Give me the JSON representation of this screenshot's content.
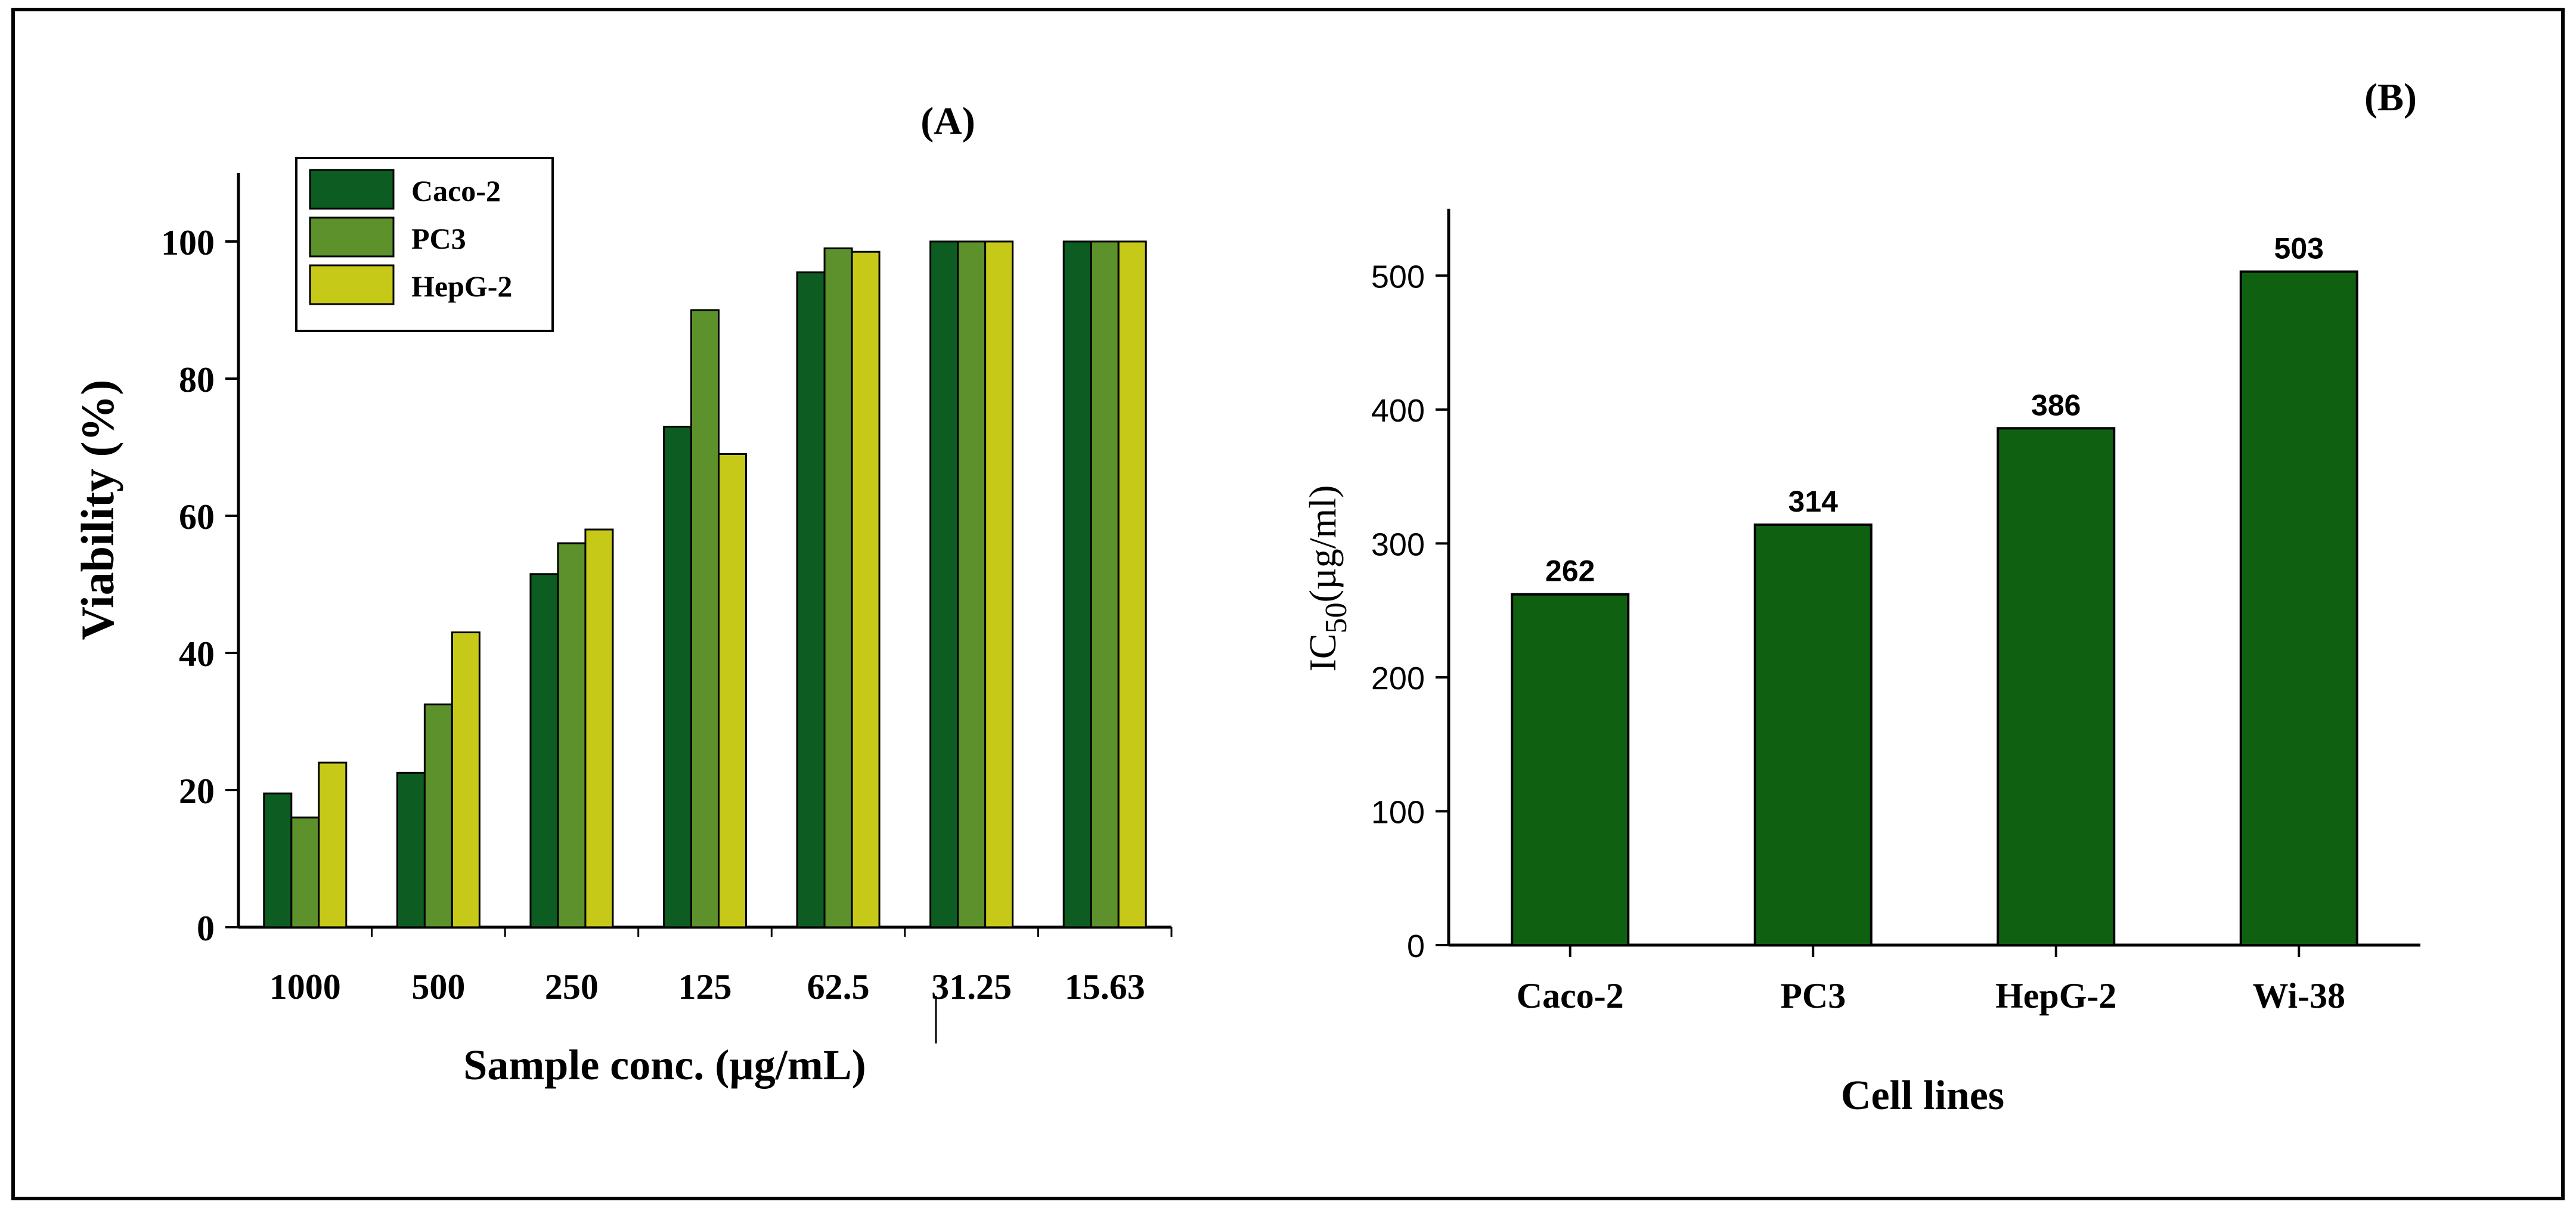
{
  "colors": {
    "caco2": "#0d5d22",
    "pc3": "#5d912b",
    "hepg2": "#c7c919",
    "ic50_bar": "#0f6111",
    "axis": "#000000",
    "frame": "#000000"
  },
  "chart_data": [
    {
      "panel": "(A)",
      "type": "bar",
      "title": "(A)",
      "xlabel": "Sample conc. (µg/mL)",
      "ylabel": "Viability (%)",
      "ylim": [
        0,
        110
      ],
      "yticks": [
        "0",
        "20",
        "40",
        "60",
        "80",
        "100"
      ],
      "categories": [
        "1000",
        "500",
        "250",
        "125",
        "62.5",
        "31.25",
        "15.63"
      ],
      "legend_position": "top-left",
      "series": [
        {
          "name": "Caco-2",
          "color_key": "caco2",
          "values": [
            19.5,
            22.5,
            51.5,
            73,
            95.5,
            100,
            100
          ]
        },
        {
          "name": "PC3",
          "color_key": "pc3",
          "values": [
            16,
            32.5,
            56,
            90,
            99,
            100,
            100
          ]
        },
        {
          "name": "HepG-2",
          "color_key": "hepg2",
          "values": [
            24,
            43,
            58,
            69,
            98.5,
            100,
            100
          ]
        }
      ]
    },
    {
      "panel": "(B)",
      "type": "bar",
      "title": "(B)",
      "xlabel": "Cell lines",
      "ylabel_main": "IC",
      "ylabel_sub": "50",
      "ylabel_rest": "(µg/ml)",
      "ylim": [
        0,
        550
      ],
      "yticks": [
        "0",
        "100",
        "200",
        "300",
        "400",
        "500"
      ],
      "categories": [
        "Caco-2",
        "PC3",
        "HepG-2",
        "Wi-38"
      ],
      "values": [
        262,
        314,
        386,
        503
      ],
      "data_labels": [
        "262",
        "314",
        "386",
        "503"
      ]
    }
  ]
}
